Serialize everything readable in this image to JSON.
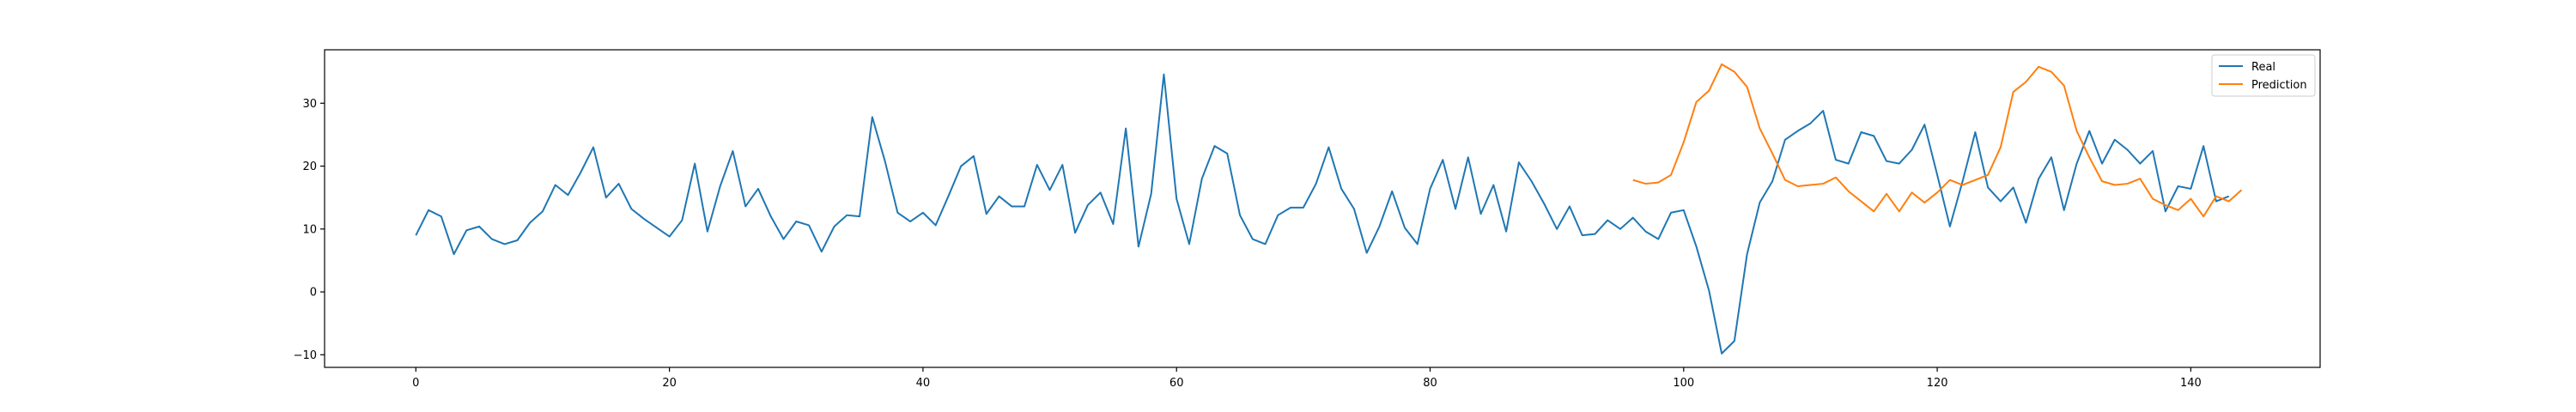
{
  "chart_data": {
    "type": "line",
    "title": "",
    "xlabel": "",
    "ylabel": "",
    "xlim": [
      -7.2,
      150.2
    ],
    "ylim": [
      -12,
      38.5
    ],
    "xticks": [
      0,
      20,
      40,
      60,
      80,
      100,
      120,
      140
    ],
    "yticks": [
      -10,
      0,
      10,
      20,
      30
    ],
    "ytick_labels": [
      "−10",
      "0",
      "10",
      "20",
      "30"
    ],
    "grid": false,
    "legend_position": "top-right",
    "series": [
      {
        "name": "Real",
        "color": "#1f77b4",
        "x_start": 0,
        "values": [
          9.0,
          13.0,
          12.0,
          6.0,
          9.8,
          10.4,
          8.4,
          7.6,
          8.2,
          11.0,
          12.8,
          17.0,
          15.4,
          19.0,
          23.0,
          15.0,
          17.2,
          13.2,
          11.6,
          10.2,
          8.8,
          11.4,
          20.4,
          9.6,
          16.8,
          22.4,
          13.6,
          16.4,
          12.0,
          8.4,
          11.2,
          10.6,
          6.4,
          10.4,
          12.2,
          12.0,
          27.8,
          20.8,
          12.6,
          11.2,
          12.6,
          10.6,
          15.2,
          20.0,
          21.6,
          12.4,
          15.2,
          13.6,
          13.6,
          20.2,
          16.2,
          20.2,
          9.4,
          13.8,
          15.8,
          10.8,
          26.0,
          7.2,
          15.6,
          34.6,
          14.8,
          7.6,
          18.0,
          23.2,
          22.0,
          12.2,
          8.4,
          7.6,
          12.2,
          13.4,
          13.4,
          17.2,
          23.0,
          16.4,
          13.2,
          6.2,
          10.4,
          16.0,
          10.2,
          7.6,
          16.4,
          21.0,
          13.2,
          21.4,
          12.4,
          17.0,
          9.6,
          20.6,
          17.6,
          14.0,
          10.0,
          13.6,
          9.0,
          9.2,
          11.4,
          10.0,
          11.8,
          9.6,
          8.4,
          12.6,
          13.0,
          7.2,
          0.2,
          -9.8,
          -7.8,
          6.0,
          14.2,
          17.6,
          24.2,
          25.6,
          26.8,
          28.8,
          21.0,
          20.4,
          25.4,
          24.8,
          20.8,
          20.4,
          22.6,
          26.6,
          18.6,
          10.4,
          17.6,
          25.4,
          16.6,
          14.4,
          16.6,
          11.0,
          18.0,
          21.4,
          13.0,
          20.4,
          25.6,
          20.4,
          24.2,
          22.6,
          20.4,
          22.4,
          12.8,
          16.8,
          16.4,
          23.2,
          14.4,
          15.2
        ]
      },
      {
        "name": "Prediction",
        "color": "#ff7f0e",
        "x_start": 96,
        "values": [
          17.8,
          17.2,
          17.4,
          18.6,
          23.8,
          30.2,
          32.0,
          36.2,
          35.0,
          32.6,
          26.0,
          22.0,
          17.8,
          16.8,
          17.0,
          17.2,
          18.2,
          16.0,
          14.4,
          12.8,
          15.6,
          12.8,
          15.8,
          14.2,
          15.8,
          17.8,
          17.0,
          17.8,
          18.6,
          23.0,
          31.8,
          33.4,
          35.8,
          35.0,
          32.8,
          25.6,
          21.4,
          17.6,
          17.0,
          17.2,
          18.0,
          14.8,
          13.8,
          13.0,
          14.8,
          12.0,
          15.2,
          14.4,
          16.2
        ]
      }
    ]
  }
}
